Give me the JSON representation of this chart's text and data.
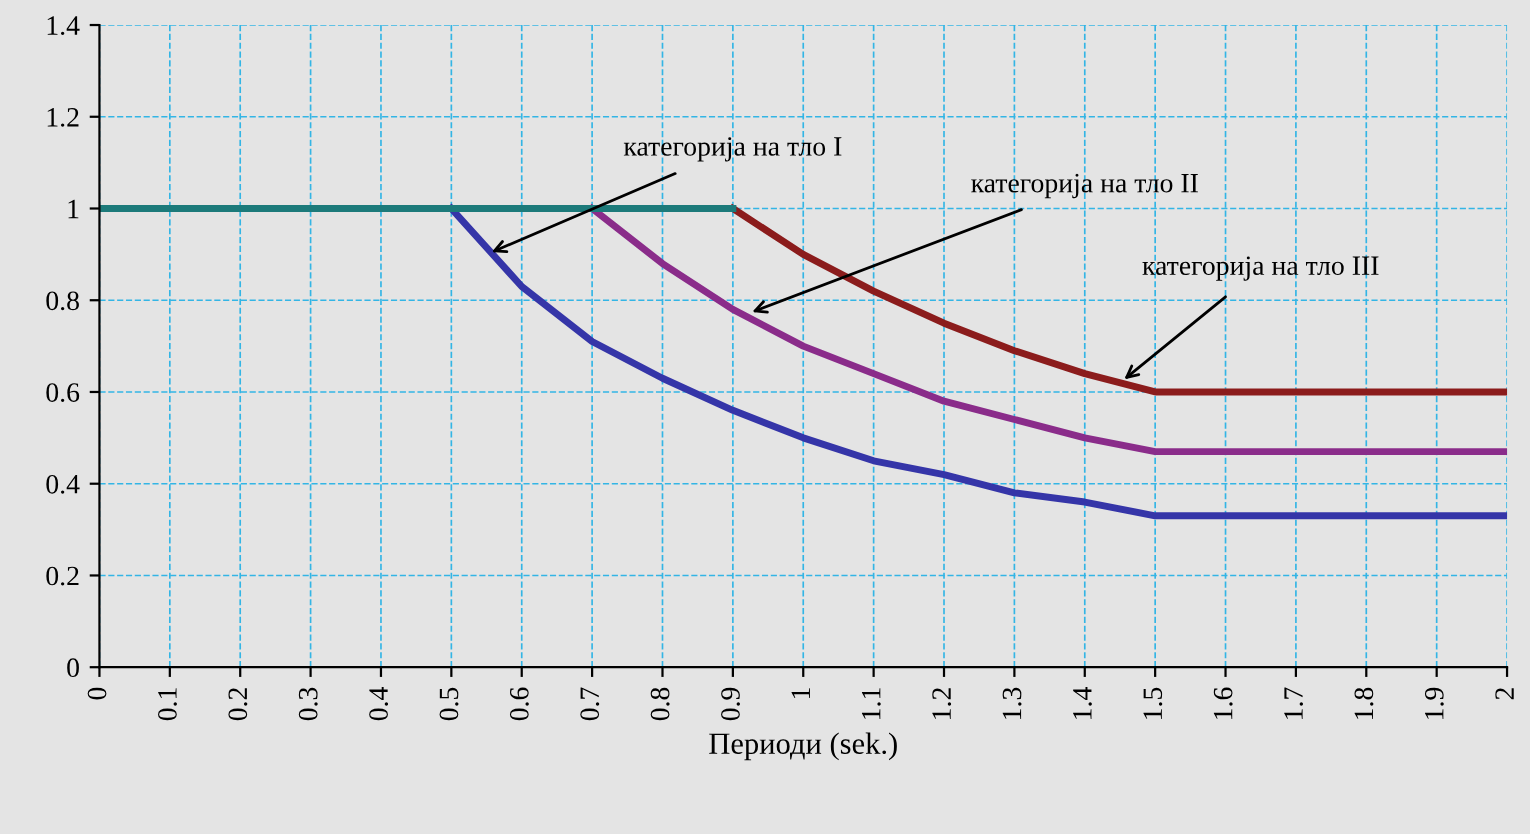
{
  "chart_data": {
    "type": "line",
    "xlabel": "Периоди (sek.)",
    "x": [
      0,
      0.5,
      0.6,
      0.7,
      0.8,
      0.9,
      1.0,
      1.1,
      1.2,
      1.3,
      1.4,
      1.5,
      2.0
    ],
    "series": [
      {
        "color": "#3535a8",
        "values": [
          null,
          1,
          0.83,
          0.71,
          0.63,
          0.56,
          0.5,
          0.45,
          0.42,
          0.38,
          0.36,
          0.33,
          0.33
        ]
      },
      {
        "color": "#8a2c8a",
        "values": [
          null,
          null,
          null,
          1,
          0.88,
          0.78,
          0.7,
          0.64,
          0.58,
          0.54,
          0.5,
          0.47,
          0.47
        ]
      },
      {
        "color": "#8b1c1c",
        "values": [
          null,
          null,
          null,
          null,
          null,
          1,
          0.9,
          0.82,
          0.75,
          0.69,
          0.64,
          0.6,
          0.6
        ]
      },
      {
        "color": "#1c7a7a",
        "values": [
          1,
          1,
          1,
          1,
          1,
          1,
          null,
          null,
          null,
          null,
          null,
          null,
          null
        ]
      }
    ],
    "xlim": [
      0,
      2
    ],
    "xticks": [
      0,
      0.1,
      0.2,
      0.3,
      0.4,
      0.5,
      0.6,
      0.7,
      0.8,
      0.9,
      1,
      1.1,
      1.2,
      1.3,
      1.4,
      1.5,
      1.6,
      1.7,
      1.8,
      1.9,
      2
    ],
    "ylim": [
      0,
      1.4
    ],
    "yticks": [
      0,
      0.2,
      0.4,
      0.6,
      0.8,
      1,
      1.2,
      1.4
    ],
    "grid": true,
    "marker": "none",
    "line_style": "solid",
    "annotations": [
      {
        "text": "категорија на тло I",
        "x": 0.55,
        "y": 0.9
      },
      {
        "text": "категорија на тло II",
        "x": 0.92,
        "y": 0.77
      },
      {
        "text": "категорија на тло III",
        "x": 1.45,
        "y": 0.62
      }
    ]
  }
}
